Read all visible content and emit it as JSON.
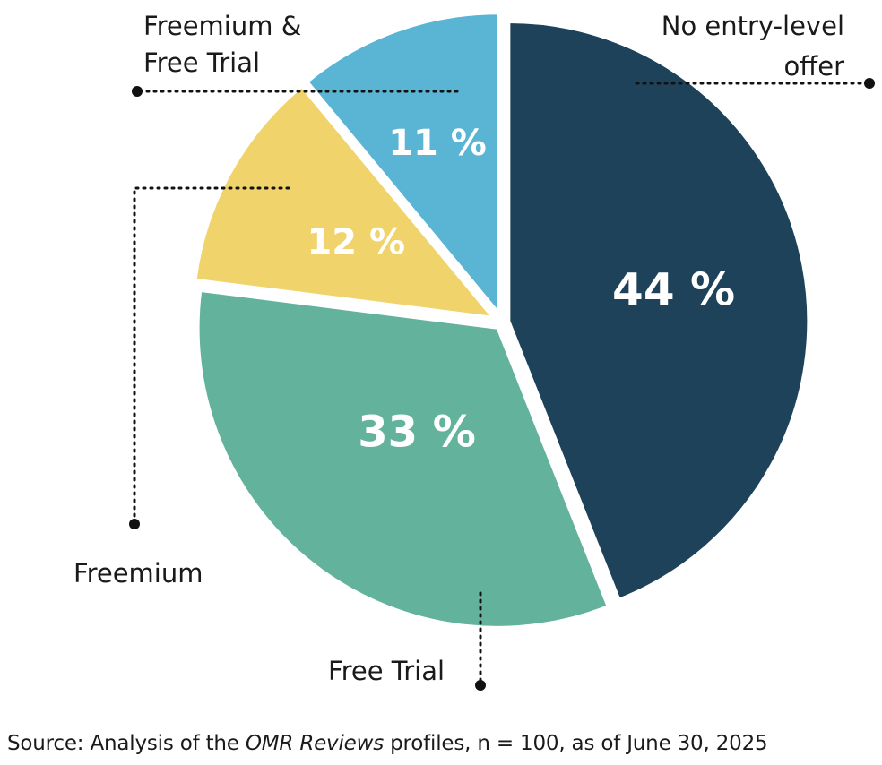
{
  "chart_data": {
    "type": "pie",
    "categories": [
      "No entry-level offer",
      "Free Trial",
      "Freemium",
      "Freemium & Free Trial"
    ],
    "values": [
      44,
      33,
      12,
      11
    ],
    "value_labels": [
      "44 %",
      "33 %",
      "12 %",
      "11 %"
    ],
    "label_lines": [
      [
        "No entry-level",
        "offer"
      ],
      [
        "Free Trial"
      ],
      [
        "Freemium"
      ],
      [
        "Freemium &",
        "Free Trial"
      ]
    ],
    "colors": [
      "#1d4259",
      "#63b29b",
      "#f0d46b",
      "#5ab4d4"
    ],
    "start_direction": "top",
    "direction": "clockwise",
    "exploded": true,
    "legend": "none"
  },
  "source": {
    "prefix": "Source: Analysis of the ",
    "emphasis": "OMR Reviews",
    "suffix": " profiles, n = 100, as of June 30, 2025"
  }
}
